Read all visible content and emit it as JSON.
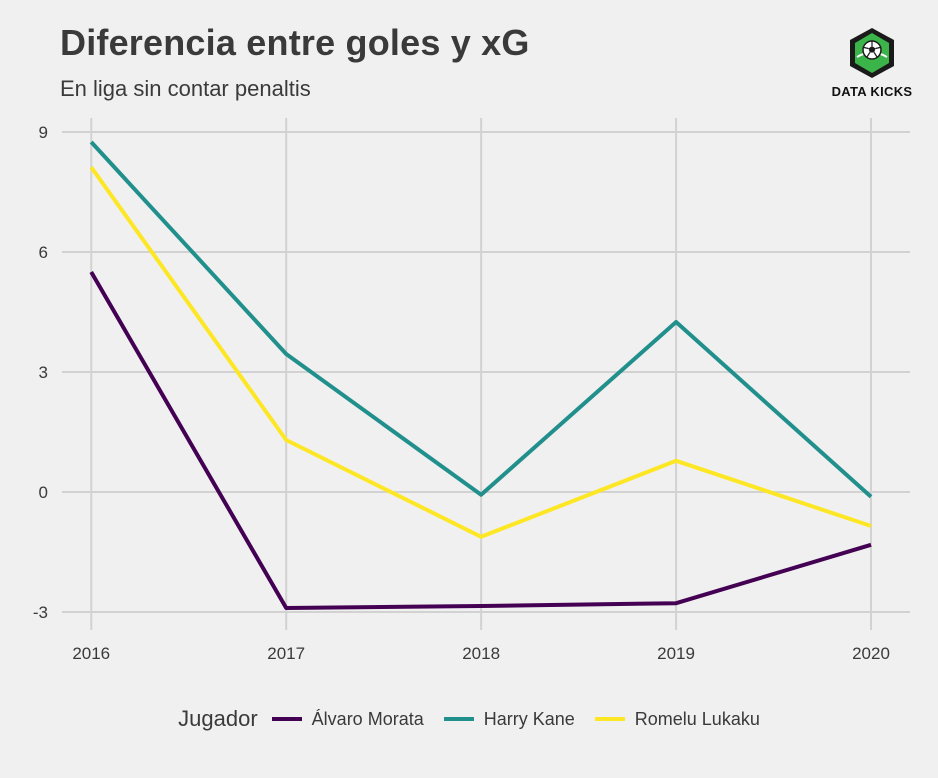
{
  "header": {
    "title": "Diferencia entre goles y xG",
    "subtitle": "En liga sin contar penaltis"
  },
  "logo": {
    "text": "DATA KICKS",
    "icon": "soccer-ball-icon",
    "colors": {
      "hex": "#1a1a1a",
      "inner": "#3bb54a",
      "ball": "#ffffff"
    }
  },
  "colors": {
    "background": "#f0f0f0",
    "grid": "#d2d2d2",
    "text": "#3a3a3a"
  },
  "chart_data": {
    "type": "line",
    "title": "Diferencia entre goles y xG",
    "subtitle": "En liga sin contar penaltis",
    "xlabel": "",
    "ylabel": "",
    "x": [
      2016,
      2017,
      2018,
      2019,
      2020
    ],
    "xticks": [
      "2016",
      "2017",
      "2018",
      "2019",
      "2020"
    ],
    "yticks": [
      -3,
      0,
      3,
      6,
      9
    ],
    "ytick_labels": [
      "-3",
      "0",
      "3",
      "6",
      "9"
    ],
    "ylim": [
      -3.25,
      9.35
    ],
    "xlim": [
      2015.85,
      2020.2
    ],
    "grid": true,
    "legend": {
      "title": "Jugador",
      "placement": "bottom"
    },
    "series": [
      {
        "name": "Álvaro Morata",
        "color": "#440154",
        "values": [
          5.5,
          -2.9,
          -2.85,
          -2.78,
          -1.32
        ]
      },
      {
        "name": "Harry Kane",
        "color": "#21908c",
        "values": [
          8.75,
          3.45,
          -0.07,
          4.25,
          -0.12
        ]
      },
      {
        "name": "Romelu Lukaku",
        "color": "#fde725",
        "values": [
          8.12,
          1.3,
          -1.12,
          0.78,
          -0.85
        ]
      }
    ]
  }
}
